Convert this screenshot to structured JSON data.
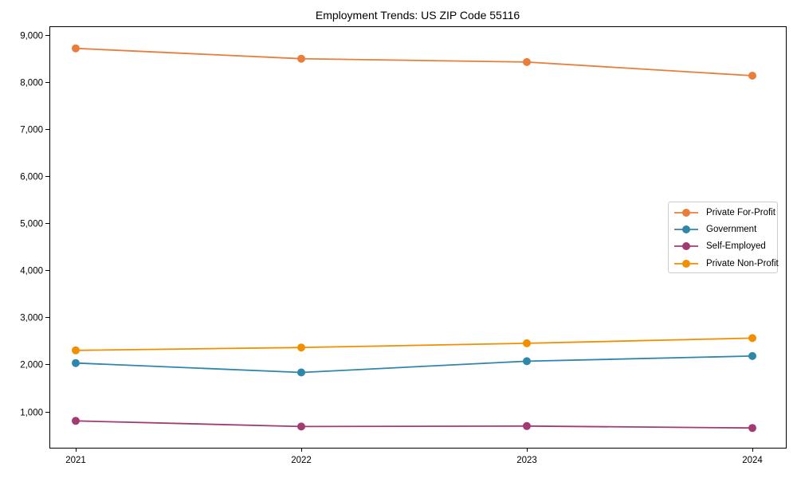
{
  "chart_data": {
    "type": "line",
    "title": "Employment Trends: US ZIP Code 55116",
    "x": [
      2021,
      2022,
      2023,
      2024
    ],
    "x_tick_labels": [
      "2021",
      "2022",
      "2023",
      "2024"
    ],
    "series": [
      {
        "name": "Private For-Profit",
        "color": "#e87d3c",
        "values": [
          8720,
          8500,
          8430,
          8140
        ]
      },
      {
        "name": "Government",
        "color": "#2e86ab",
        "values": [
          2030,
          1830,
          2070,
          2180
        ]
      },
      {
        "name": "Self-Employed",
        "color": "#a23b72",
        "values": [
          800,
          680,
          690,
          650
        ]
      },
      {
        "name": "Private Non-Profit",
        "color": "#f18f01",
        "values": [
          2300,
          2360,
          2450,
          2560
        ]
      }
    ],
    "xlabel": "",
    "ylabel": "",
    "ylim": [
      230,
      9190
    ],
    "yticks": {
      "values": [
        1000,
        2000,
        3000,
        4000,
        5000,
        6000,
        7000,
        8000,
        9000
      ],
      "labels": [
        "1,000",
        "2,000",
        "3,000",
        "4,000",
        "5,000",
        "6,000",
        "7,000",
        "8,000",
        "9,000"
      ]
    },
    "grid": false,
    "marker": "circle",
    "legend": {
      "position": "center-right",
      "border_color": "#cccccc",
      "background": "#ffffff"
    }
  }
}
